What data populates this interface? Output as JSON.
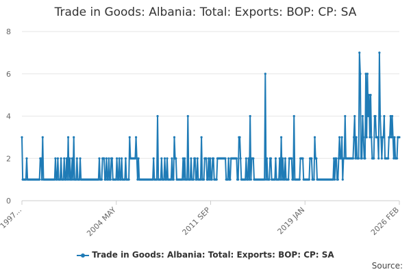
{
  "chart_data": {
    "type": "line",
    "title": "Trade in Goods: Albania: Total: Exports: BOP: CP: SA",
    "xlabel": "",
    "ylabel": "",
    "ylim": [
      0,
      8
    ],
    "y_ticks": [
      0,
      2,
      4,
      6,
      8
    ],
    "x_tick_labels": [
      "1997...",
      "2004 MAY",
      "2011 SEP",
      "2019 JAN",
      "2026 FEB"
    ],
    "x_start": "1997-01",
    "x_end": "2026-02",
    "grid": true,
    "legend_position": "bottom",
    "color": "#1f7bb6",
    "credits": "Source:",
    "series": [
      {
        "name": "Trade in Goods: Albania: Total: Exports: BOP: CP: SA",
        "values": [
          3,
          1,
          1,
          1,
          1,
          1,
          2,
          1,
          1,
          1,
          1,
          1,
          1,
          1,
          1,
          1,
          1,
          1,
          1,
          1,
          1,
          1,
          1,
          2,
          2,
          1,
          3,
          1,
          1,
          1,
          1,
          1,
          1,
          1,
          1,
          1,
          1,
          1,
          1,
          1,
          1,
          1,
          2,
          1,
          1,
          2,
          1,
          1,
          1,
          2,
          1,
          1,
          1,
          2,
          1,
          1,
          2,
          1,
          3,
          1,
          2,
          1,
          1,
          2,
          1,
          3,
          1,
          1,
          1,
          2,
          1,
          1,
          1,
          2,
          1,
          1,
          1,
          1,
          1,
          1,
          1,
          1,
          1,
          1,
          1,
          1,
          1,
          1,
          1,
          1,
          1,
          1,
          1,
          1,
          1,
          1,
          1,
          2,
          1,
          1,
          1,
          2,
          2,
          2,
          1,
          1,
          2,
          1,
          1,
          2,
          1,
          1,
          2,
          2,
          1,
          1,
          1,
          1,
          1,
          2,
          1,
          1,
          2,
          1,
          1,
          2,
          1,
          1,
          1,
          1,
          2,
          1,
          1,
          1,
          1,
          3,
          2,
          2,
          2,
          2,
          2,
          2,
          2,
          3,
          2,
          1,
          2,
          1,
          1,
          1,
          1,
          1,
          1,
          1,
          1,
          1,
          1,
          1,
          1,
          1,
          1,
          1,
          1,
          1,
          1,
          2,
          1,
          1,
          1,
          1,
          4,
          1,
          1,
          1,
          1,
          2,
          1,
          1,
          1,
          2,
          1,
          1,
          2,
          1,
          1,
          1,
          1,
          1,
          2,
          1,
          1,
          3,
          2,
          2,
          1,
          1,
          1,
          1,
          1,
          1,
          1,
          1,
          2,
          1,
          2,
          1,
          1,
          1,
          4,
          1,
          1,
          1,
          2,
          1,
          1,
          1,
          2,
          2,
          1,
          1,
          2,
          1,
          1,
          1,
          1,
          3,
          1,
          1,
          1,
          2,
          2,
          2,
          1,
          1,
          2,
          1,
          2,
          1,
          1,
          2,
          2,
          1,
          1,
          1,
          1,
          2,
          2,
          2,
          2,
          2,
          2,
          2,
          2,
          2,
          2,
          2,
          1,
          1,
          1,
          2,
          1,
          1,
          2,
          2,
          2,
          2,
          2,
          2,
          2,
          2,
          1,
          1,
          3,
          3,
          2,
          1,
          1,
          1,
          1,
          1,
          1,
          2,
          1,
          1,
          2,
          1,
          4,
          1,
          2,
          2,
          2,
          1,
          1,
          1,
          1,
          1,
          1,
          1,
          1,
          1,
          1,
          1,
          1,
          1,
          1,
          6,
          1,
          2,
          1,
          1,
          1,
          2,
          2,
          1,
          1,
          1,
          1,
          1,
          2,
          1,
          1,
          1,
          1,
          2,
          1,
          3,
          1,
          2,
          1,
          1,
          2,
          1,
          1,
          1,
          1,
          2,
          2,
          2,
          2,
          1,
          1,
          4,
          1,
          1,
          1,
          1,
          1,
          1,
          1,
          2,
          2,
          2,
          2,
          1,
          1,
          1,
          1,
          1,
          1,
          1,
          1,
          2,
          2,
          2,
          1,
          1,
          1,
          3,
          2,
          2,
          1,
          1,
          1,
          1,
          1,
          1,
          1,
          1,
          1,
          1,
          1,
          1,
          1,
          1,
          1,
          1,
          1,
          1,
          1,
          1,
          1,
          2,
          1,
          2,
          2,
          1,
          1,
          2,
          3,
          2,
          2,
          3,
          1,
          2,
          2,
          4,
          2,
          2,
          2,
          2,
          2,
          2,
          2,
          2,
          2,
          2,
          3,
          4,
          2,
          3,
          2,
          2,
          2,
          7,
          6,
          2,
          2,
          4,
          3,
          2,
          2,
          6,
          3,
          6,
          4,
          5,
          3,
          5,
          3,
          2,
          2,
          2,
          4,
          4,
          3,
          3,
          3,
          2,
          7,
          4,
          3,
          2,
          3,
          3,
          4,
          2,
          2,
          2,
          2,
          2,
          3,
          3,
          4,
          3,
          4,
          3,
          2,
          3,
          2,
          2,
          2,
          3,
          3,
          3
        ]
      }
    ]
  }
}
